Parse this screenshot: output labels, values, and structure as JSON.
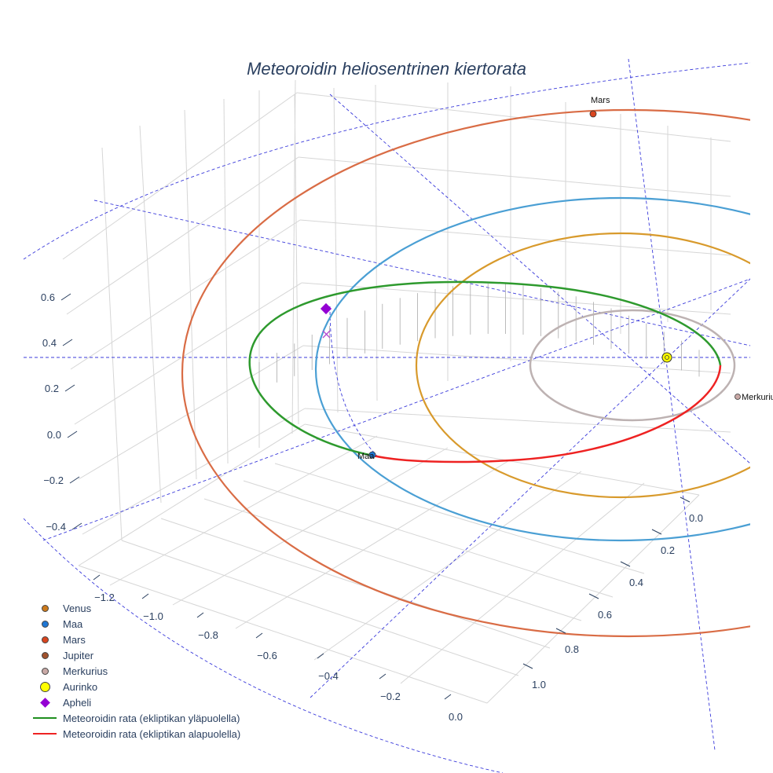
{
  "title": "Meteoroidin heliosentrinen kiertorata",
  "chart_data": {
    "type": "line3d",
    "title": "Meteoroidin heliosentrinen kiertorata",
    "axes": {
      "x_ticks": [
        "−1.2",
        "−1.0",
        "−0.8",
        "−0.6",
        "−0.4",
        "−0.2",
        "0.0"
      ],
      "y_ticks": [
        "0.0",
        "0.2",
        "0.4",
        "0.6",
        "0.8",
        "1.0"
      ],
      "z_ticks": [
        "0.6",
        "0.4",
        "0.2",
        "0.0",
        "−0.2",
        "−0.4"
      ]
    },
    "planet_labels": {
      "mars": "Mars",
      "maa": "Maa",
      "merkurius": "Merkurius"
    },
    "colors": {
      "venus": "#d89a2c",
      "maa": "#1f77d4",
      "maa_orbit": "#4a9fd4",
      "mars": "#d9572a",
      "mars_orbit": "#d96c45",
      "jupiter": "#a0522d",
      "merkurius": "#bdb2b2",
      "aurinko": "#ffff00",
      "apheli": "#9400d3",
      "above": "#1f8f1f",
      "below": "#ee2222",
      "guides": "#3b3bdb"
    },
    "legend": [
      {
        "label": "Venus",
        "symbol": "circle",
        "color": "#cc7a1c"
      },
      {
        "label": "Maa",
        "symbol": "circle",
        "color": "#1f77d4"
      },
      {
        "label": "Mars",
        "symbol": "circle",
        "color": "#d9451f"
      },
      {
        "label": "Jupiter",
        "symbol": "circle",
        "color": "#a0522d"
      },
      {
        "label": "Merkurius",
        "symbol": "circle",
        "color": "#c9a9a6"
      },
      {
        "label": "Aurinko",
        "symbol": "circle-large",
        "color": "#ffff00"
      },
      {
        "label": "Apheli",
        "symbol": "diamond",
        "color": "#9400d3"
      },
      {
        "label": "Meteoroidin rata (ekliptikan yläpuolella)",
        "symbol": "line",
        "color": "#1f8f1f"
      },
      {
        "label": "Meteoroidin rata (ekliptikan alapuolella)",
        "symbol": "line",
        "color": "#ee2222"
      }
    ]
  }
}
